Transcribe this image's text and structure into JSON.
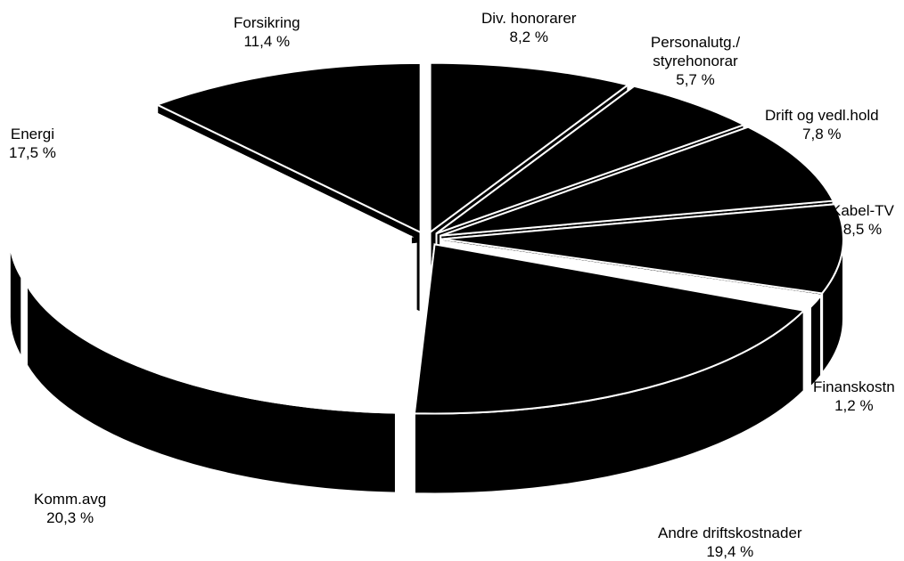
{
  "chart_data": {
    "type": "pie",
    "style": "3d-exploded",
    "colors": {
      "fill": "#000000",
      "highlight": "#ffffff",
      "outline": "#ffffff",
      "background": "#ffffff"
    },
    "slices": [
      {
        "label": "Div. honorarer",
        "value": 8.2,
        "display": "8,2 %",
        "color": "#000000"
      },
      {
        "label": "Personalutg./ styrehonorar",
        "value": 5.7,
        "display": "5,7 %",
        "color": "#000000"
      },
      {
        "label": "Drift og vedl.hold",
        "value": 7.8,
        "display": "7,8 %",
        "color": "#000000"
      },
      {
        "label": "Kabel-TV",
        "value": 8.5,
        "display": "8,5 %",
        "color": "#000000"
      },
      {
        "label": "Finanskostn",
        "value": 1.2,
        "display": "1,2 %",
        "color": "#ffffff"
      },
      {
        "label": "Andre driftskostnader",
        "value": 19.4,
        "display": "19,4 %",
        "color": "#000000"
      },
      {
        "label": "Komm.avg",
        "value": 20.3,
        "display": "20,3 %",
        "color": "#ffffff"
      },
      {
        "label": "Energi",
        "value": 17.5,
        "display": "17,5 %",
        "color": "#ffffff"
      },
      {
        "label": "Forsikring",
        "value": 11.4,
        "display": "11,4 %",
        "color": "#000000"
      }
    ]
  }
}
